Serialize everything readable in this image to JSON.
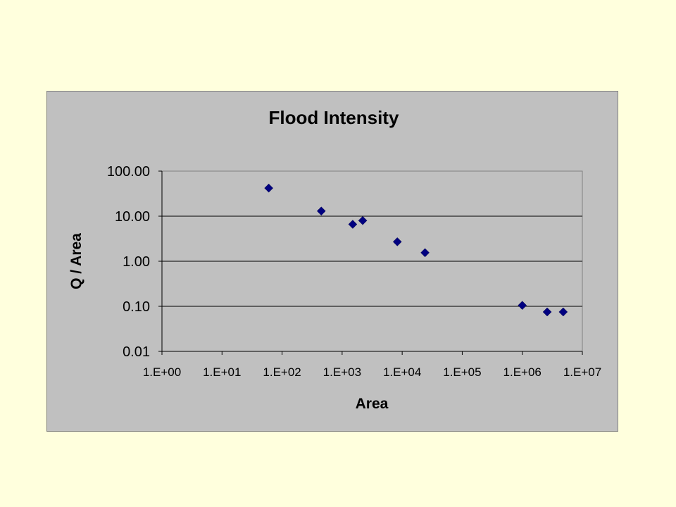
{
  "chart_data": {
    "type": "scatter",
    "title": "Flood Intensity",
    "xlabel": "Area",
    "ylabel": "Q / Area",
    "x_scale": "log",
    "y_scale": "log",
    "xlim": [
      1,
      10000000
    ],
    "ylim": [
      0.01,
      100
    ],
    "x_tick_values": [
      1,
      10,
      100,
      1000,
      10000,
      100000,
      1000000,
      10000000
    ],
    "x_tick_labels": [
      "1.E+00",
      "1.E+01",
      "1.E+02",
      "1.E+03",
      "1.E+04",
      "1.E+05",
      "1.E+06",
      "1.E+07"
    ],
    "y_tick_values": [
      100,
      10,
      1,
      0.1,
      0.01
    ],
    "y_tick_labels": [
      "100.00",
      "10.00",
      "1.00",
      "0.10",
      "0.01"
    ],
    "grid": "horizontal major gridlines",
    "legend": "none",
    "marker": "diamond",
    "marker_color": "#000080",
    "plot_background": "#C0C0C0",
    "page_background": "#FFFFDD",
    "points": [
      {
        "x": 60,
        "y": 42
      },
      {
        "x": 450,
        "y": 13
      },
      {
        "x": 1500,
        "y": 6.6
      },
      {
        "x": 2200,
        "y": 8.0
      },
      {
        "x": 8300,
        "y": 2.7
      },
      {
        "x": 24000,
        "y": 1.55
      },
      {
        "x": 1000000,
        "y": 0.105
      },
      {
        "x": 2600000,
        "y": 0.075
      },
      {
        "x": 4800000,
        "y": 0.075
      }
    ]
  }
}
